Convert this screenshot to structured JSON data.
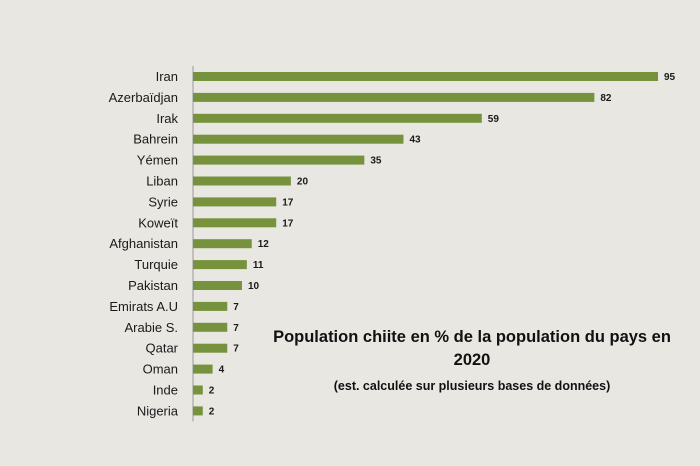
{
  "chart_data": {
    "type": "bar",
    "orientation": "horizontal",
    "categories": [
      "Iran",
      "Azerbaïdjan",
      "Irak",
      "Bahrein",
      "Yémen",
      "Liban",
      "Syrie",
      "Koweït",
      "Afghanistan",
      "Turquie",
      "Pakistan",
      "Emirats A.U",
      "Arabie S.",
      "Qatar",
      "Oman",
      "Inde",
      "Nigeria"
    ],
    "series": [
      {
        "values": [
          95,
          82,
          59,
          43,
          35,
          20,
          17,
          17,
          12,
          11,
          10,
          7,
          7,
          7,
          4,
          2,
          2
        ]
      }
    ],
    "title": "Population chiite en % de la population du pays en 2020",
    "subtitle": "(est. calculée sur plusieurs bases de données)",
    "xlim": [
      0,
      100
    ],
    "grid": false,
    "data_labels": true,
    "bar_color": "#76923c"
  }
}
